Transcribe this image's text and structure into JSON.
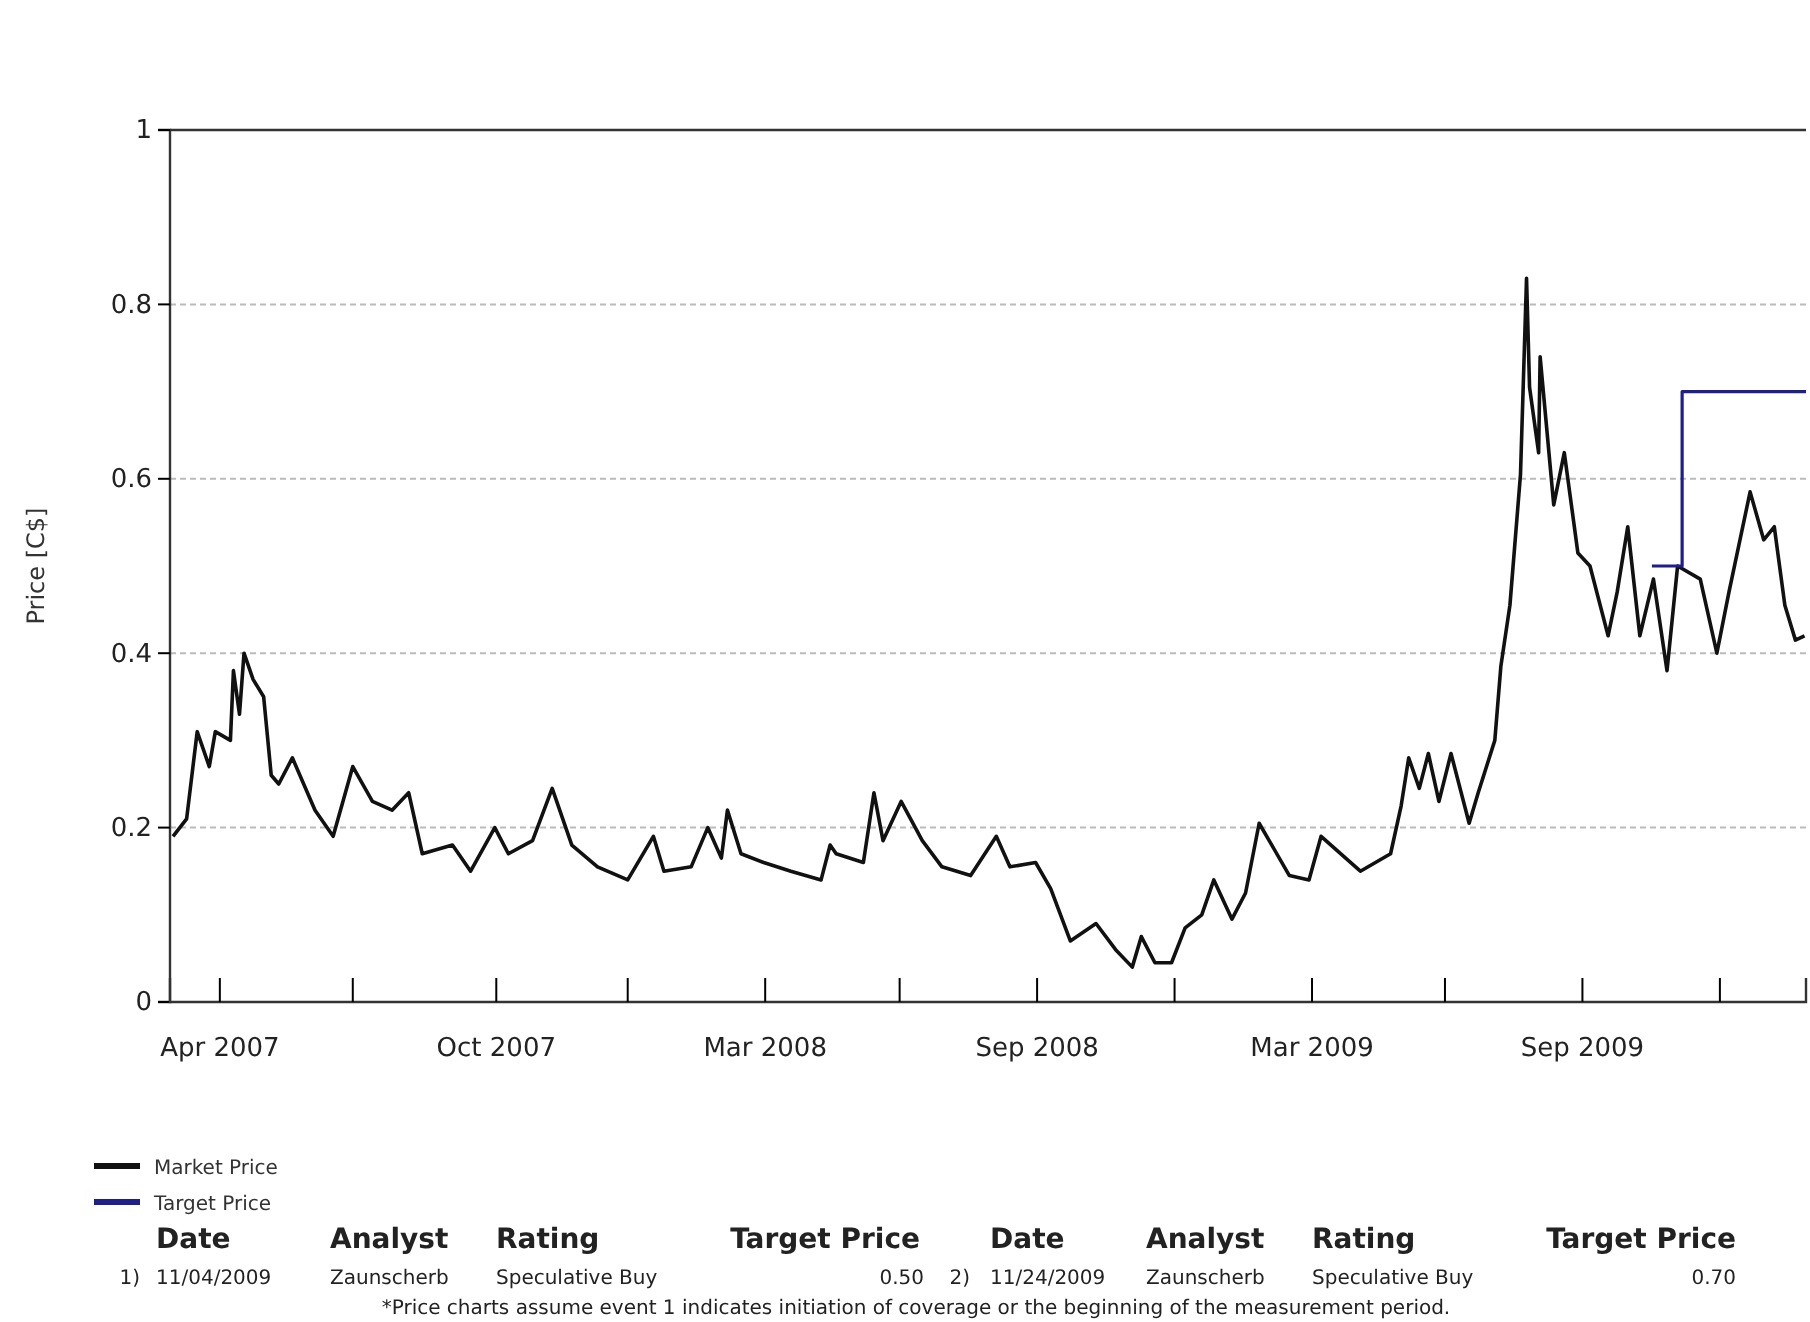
{
  "chart_data": {
    "type": "line",
    "ylabel": "Price [C$]",
    "xlim": [
      "2007-02-27",
      "2010-02-14"
    ],
    "ylim": [
      0,
      1
    ],
    "yticks": [
      0,
      0.2,
      0.4,
      0.6,
      0.8,
      1
    ],
    "xticks": [
      {
        "value": "2007-04-01",
        "label": "Apr 2007"
      },
      {
        "value": "2007-06-28",
        "label": null
      },
      {
        "value": "2007-10-01",
        "label": "Oct 2007"
      },
      {
        "value": "2007-12-27",
        "label": null
      },
      {
        "value": "2008-03-27",
        "label": "Mar 2008"
      },
      {
        "value": "2008-06-24",
        "label": null
      },
      {
        "value": "2008-09-23",
        "label": "Sep 2008"
      },
      {
        "value": "2008-12-23",
        "label": null
      },
      {
        "value": "2009-03-24",
        "label": "Mar 2009"
      },
      {
        "value": "2009-06-20",
        "label": null
      },
      {
        "value": "2009-09-19",
        "label": "Sep 2009"
      },
      {
        "value": "2009-12-19",
        "label": null
      }
    ],
    "grid": "y",
    "legend": "bottom left",
    "line_style": "solid",
    "series": [
      {
        "name": "Market Price",
        "color": "#111111",
        "x": [
          "2007-03-01",
          "2007-03-10",
          "2007-03-17",
          "2007-03-25",
          "2007-03-29",
          "2007-04-08",
          "2007-04-10",
          "2007-04-14",
          "2007-04-17",
          "2007-04-23",
          "2007-04-30",
          "2007-05-05",
          "2007-05-10",
          "2007-05-19",
          "2007-06-03",
          "2007-06-15",
          "2007-06-28",
          "2007-07-11",
          "2007-07-24",
          "2007-08-04",
          "2007-08-13",
          "2007-09-02",
          "2007-09-14",
          "2007-09-30",
          "2007-10-09",
          "2007-10-25",
          "2007-11-07",
          "2007-11-20",
          "2007-12-07",
          "2007-12-27",
          "2008-01-13",
          "2008-01-20",
          "2008-02-07",
          "2008-02-18",
          "2008-02-27",
          "2008-03-02",
          "2008-03-11",
          "2008-03-26",
          "2008-04-13",
          "2008-05-03",
          "2008-05-09",
          "2008-05-13",
          "2008-05-31",
          "2008-06-07",
          "2008-06-13",
          "2008-06-25",
          "2008-07-09",
          "2008-07-22",
          "2008-08-10",
          "2008-08-27",
          "2008-09-05",
          "2008-09-22",
          "2008-10-02",
          "2008-10-15",
          "2008-11-01",
          "2008-11-14",
          "2008-11-25",
          "2008-12-01",
          "2008-12-10",
          "2008-12-21",
          "2008-12-30",
          "2009-01-10",
          "2009-01-18",
          "2009-01-30",
          "2009-02-08",
          "2009-02-17",
          "2009-03-09",
          "2009-03-22",
          "2009-03-30",
          "2009-04-25",
          "2009-05-15",
          "2009-05-22",
          "2009-05-27",
          "2009-06-03",
          "2009-06-09",
          "2009-06-16",
          "2009-06-24",
          "2009-07-06",
          "2009-07-12",
          "2009-07-23",
          "2009-07-27",
          "2009-08-02",
          "2009-08-09",
          "2009-08-13",
          "2009-08-15",
          "2009-08-21",
          "2009-08-22",
          "2009-08-31",
          "2009-09-07",
          "2009-09-16",
          "2009-09-24",
          "2009-10-06",
          "2009-10-12",
          "2009-10-19",
          "2009-10-27",
          "2009-11-05",
          "2009-11-14",
          "2009-11-21",
          "2009-12-06",
          "2009-12-17",
          "2009-12-25",
          "2010-01-08",
          "2010-01-17",
          "2010-01-24",
          "2010-01-31",
          "2010-02-07",
          "2010-02-13"
        ],
        "values": [
          0.19,
          0.21,
          0.31,
          0.27,
          0.31,
          0.3,
          0.38,
          0.33,
          0.4,
          0.37,
          0.35,
          0.26,
          0.25,
          0.28,
          0.22,
          0.19,
          0.27,
          0.23,
          0.22,
          0.24,
          0.17,
          0.18,
          0.15,
          0.2,
          0.17,
          0.185,
          0.245,
          0.18,
          0.155,
          0.14,
          0.19,
          0.15,
          0.155,
          0.2,
          0.165,
          0.22,
          0.17,
          0.16,
          0.15,
          0.14,
          0.18,
          0.17,
          0.16,
          0.24,
          0.185,
          0.23,
          0.185,
          0.155,
          0.145,
          0.19,
          0.155,
          0.16,
          0.13,
          0.07,
          0.09,
          0.06,
          0.04,
          0.075,
          0.045,
          0.045,
          0.085,
          0.1,
          0.14,
          0.095,
          0.125,
          0.205,
          0.145,
          0.14,
          0.19,
          0.15,
          0.17,
          0.225,
          0.28,
          0.245,
          0.285,
          0.23,
          0.285,
          0.205,
          0.24,
          0.3,
          0.385,
          0.455,
          0.605,
          0.83,
          0.705,
          0.63,
          0.74,
          0.57,
          0.63,
          0.515,
          0.5,
          0.42,
          0.47,
          0.545,
          0.42,
          0.485,
          0.38,
          0.5,
          0.485,
          0.4,
          0.47,
          0.585,
          0.53,
          0.545,
          0.455,
          0.415,
          0.42
        ]
      },
      {
        "name": "Target Price",
        "color": "#1f1f8a",
        "type": "step",
        "x": [
          "2009-11-04",
          "2009-11-24",
          "2010-02-14"
        ],
        "values": [
          0.5,
          0.7,
          0.7
        ]
      }
    ],
    "annotations": [
      "Date",
      "Analyst",
      "Rating",
      "Target Price",
      "Date",
      "Analyst",
      "Rating",
      "Target Price",
      "1)",
      "11/04/2009",
      "Zaunscherb",
      "Speculative Buy",
      "0.50",
      "2)",
      "11/24/2009",
      "Zaunscherb",
      "Speculative Buy",
      "0.70",
      "*Price charts assume event 1 indicates initiation of coverage or the beginning of the measurement period."
    ]
  }
}
